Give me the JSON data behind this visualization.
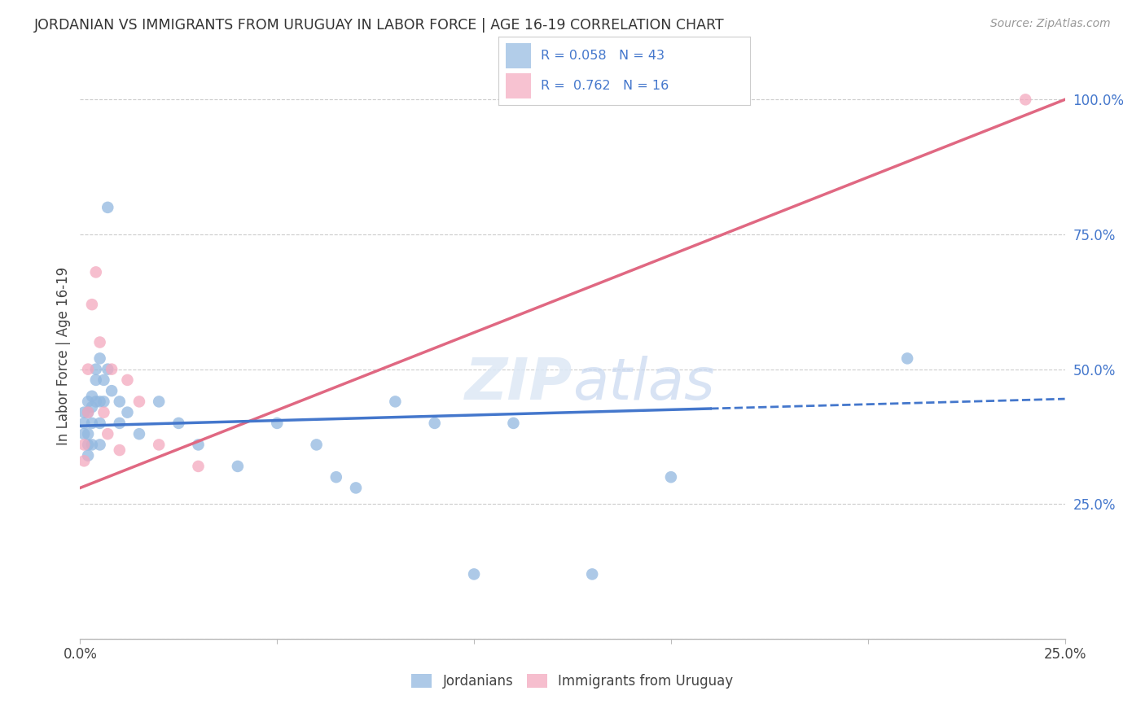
{
  "title": "JORDANIAN VS IMMIGRANTS FROM URUGUAY IN LABOR FORCE | AGE 16-19 CORRELATION CHART",
  "source": "Source: ZipAtlas.com",
  "ylabel": "In Labor Force | Age 16-19",
  "xlim": [
    0.0,
    0.25
  ],
  "ylim": [
    0.0,
    1.05
  ],
  "x_ticks": [
    0.0,
    0.05,
    0.1,
    0.15,
    0.2,
    0.25
  ],
  "y_ticks_right": [
    0.0,
    0.25,
    0.5,
    0.75,
    1.0
  ],
  "y_tick_labels_right": [
    "",
    "25.0%",
    "50.0%",
    "75.0%",
    "100.0%"
  ],
  "jordanians_color": "#92b8e0",
  "uruguay_color": "#f4a8be",
  "trend_jordan_color": "#4477cc",
  "trend_uruguay_color": "#e06882",
  "jordanians_x": [
    0.001,
    0.001,
    0.001,
    0.002,
    0.002,
    0.002,
    0.002,
    0.002,
    0.003,
    0.003,
    0.003,
    0.003,
    0.004,
    0.004,
    0.004,
    0.005,
    0.005,
    0.005,
    0.005,
    0.006,
    0.006,
    0.007,
    0.007,
    0.008,
    0.01,
    0.01,
    0.012,
    0.015,
    0.02,
    0.025,
    0.03,
    0.04,
    0.05,
    0.06,
    0.065,
    0.07,
    0.08,
    0.09,
    0.1,
    0.11,
    0.13,
    0.15,
    0.21
  ],
  "jordanians_y": [
    0.42,
    0.4,
    0.38,
    0.44,
    0.42,
    0.38,
    0.36,
    0.34,
    0.45,
    0.43,
    0.4,
    0.36,
    0.5,
    0.48,
    0.44,
    0.52,
    0.44,
    0.4,
    0.36,
    0.48,
    0.44,
    0.8,
    0.5,
    0.46,
    0.44,
    0.4,
    0.42,
    0.38,
    0.44,
    0.4,
    0.36,
    0.32,
    0.4,
    0.36,
    0.3,
    0.28,
    0.44,
    0.4,
    0.12,
    0.4,
    0.12,
    0.3,
    0.52
  ],
  "uruguay_x": [
    0.001,
    0.001,
    0.002,
    0.002,
    0.003,
    0.004,
    0.005,
    0.006,
    0.007,
    0.008,
    0.01,
    0.012,
    0.015,
    0.02,
    0.03,
    0.24
  ],
  "uruguay_y": [
    0.36,
    0.33,
    0.5,
    0.42,
    0.62,
    0.68,
    0.55,
    0.42,
    0.38,
    0.5,
    0.35,
    0.48,
    0.44,
    0.36,
    0.32,
    1.0
  ],
  "trend_jordan_y0": 0.395,
  "trend_jordan_y1": 0.445,
  "trend_jordan_solid_end": 0.16,
  "trend_uruguay_y0": 0.28,
  "trend_uruguay_y1": 1.0,
  "background_color": "#ffffff",
  "grid_color": "#cccccc",
  "title_color": "#333333",
  "right_axis_color": "#4477cc",
  "legend_color": "#4477cc"
}
